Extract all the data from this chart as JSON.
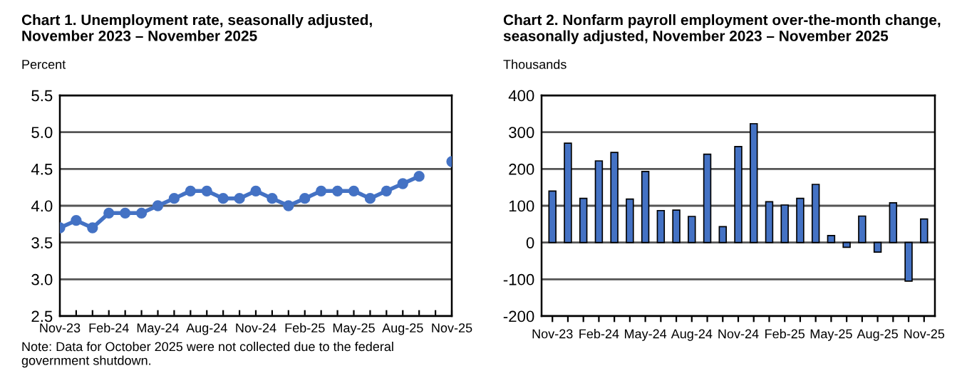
{
  "chart_data": [
    {
      "type": "line",
      "title": "Chart 1. Unemployment rate, seasonally adjusted,\nNovember 2023 – November 2025",
      "ylabel": "Percent",
      "categories": [
        "Nov-23",
        null,
        null,
        "Feb-24",
        null,
        null,
        "May-24",
        null,
        null,
        "Aug-24",
        null,
        null,
        "Nov-24",
        null,
        null,
        "Feb-25",
        null,
        null,
        "May-25",
        null,
        null,
        "Aug-25",
        null,
        null,
        "Nov-25"
      ],
      "series": [
        {
          "color": "#4472c4",
          "values": [
            3.7,
            3.8,
            3.7,
            3.9,
            3.9,
            3.9,
            4.0,
            4.1,
            4.2,
            4.2,
            4.1,
            4.1,
            4.2,
            4.1,
            4.0,
            4.1,
            4.2,
            4.2,
            4.2,
            4.1,
            4.2,
            4.3,
            4.4,
            null,
            4.6
          ]
        }
      ],
      "ylim": [
        2.5,
        5.5
      ],
      "yticks": [
        {
          "value": 2.5,
          "label": "2.5"
        },
        {
          "value": 3.0,
          "label": "3.0"
        },
        {
          "value": 3.5,
          "label": "3.5"
        },
        {
          "value": 4.0,
          "label": "4.0"
        },
        {
          "value": 4.5,
          "label": "4.5"
        },
        {
          "value": 5.0,
          "label": "5.0"
        },
        {
          "value": 5.5,
          "label": "5.5"
        }
      ],
      "grid": "y",
      "marker": "circle",
      "line_style": "solid",
      "legend": false,
      "annotations": [
        "Note: Data for October 2025 were not collected due to the federal\ngovernment shutdown."
      ]
    },
    {
      "type": "bar",
      "title": "Chart 2. Nonfarm payroll employment over-the-month change,\nseasonally adjusted, November 2023 – November 2025",
      "ylabel": "Thousands",
      "categories": [
        "Nov-23",
        null,
        null,
        "Feb-24",
        null,
        null,
        "May-24",
        null,
        null,
        "Aug-24",
        null,
        null,
        "Nov-24",
        null,
        null,
        "Feb-25",
        null,
        null,
        "May-25",
        null,
        null,
        "Aug-25",
        null,
        null,
        "Nov-25"
      ],
      "series": [
        {
          "color": "#4472c4",
          "values": [
            140,
            270,
            120,
            222,
            245,
            118,
            193,
            87,
            88,
            71,
            240,
            43,
            261,
            323,
            111,
            102,
            120,
            158,
            19,
            -13,
            72,
            -26,
            108,
            -105,
            64
          ]
        }
      ],
      "ylim": [
        -200,
        400
      ],
      "yticks": [
        -200,
        -100,
        0,
        100,
        200,
        300,
        400
      ],
      "grid": "y",
      "legend": false
    }
  ]
}
